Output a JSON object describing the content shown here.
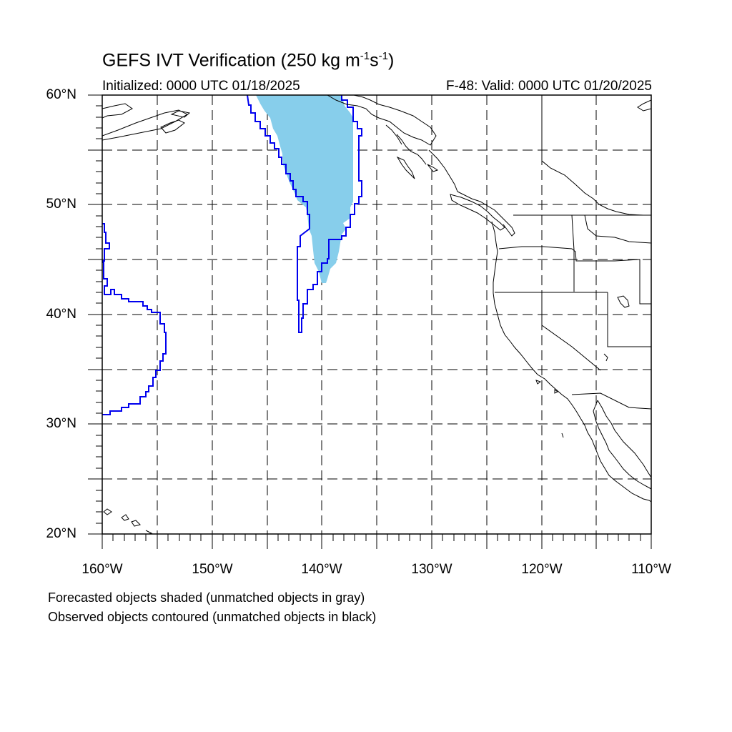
{
  "title": {
    "main": "GEFS IVT Verification (250 kg m",
    "exp1": "-1",
    "mid": "s",
    "exp2": "-1",
    "close": ")"
  },
  "subtitle_left": "Initialized: 0000 UTC 01/18/2025",
  "subtitle_right": "F-48: Valid: 0000 UTC 01/20/2025",
  "lat_labels": [
    "60°N",
    "50°N",
    "40°N",
    "30°N",
    "20°N"
  ],
  "lon_labels": [
    "160°W",
    "150°W",
    "140°W",
    "130°W",
    "120°W",
    "110°W"
  ],
  "notes": [
    "Forecasted objects shaded (unmatched objects in gray)",
    "Observed objects contoured (unmatched objects in black)"
  ],
  "colors": {
    "forecast_fill": "#87ceeb",
    "observed_contour": "#0000ee",
    "coastline": "#000000",
    "grid": "#000000"
  },
  "map_extent": {
    "lon_min": -160,
    "lon_max": -110,
    "lat_min": 20,
    "lat_max": 60
  },
  "grid": {
    "style": "dashed",
    "lon_step": 5,
    "lat_step": 5
  }
}
